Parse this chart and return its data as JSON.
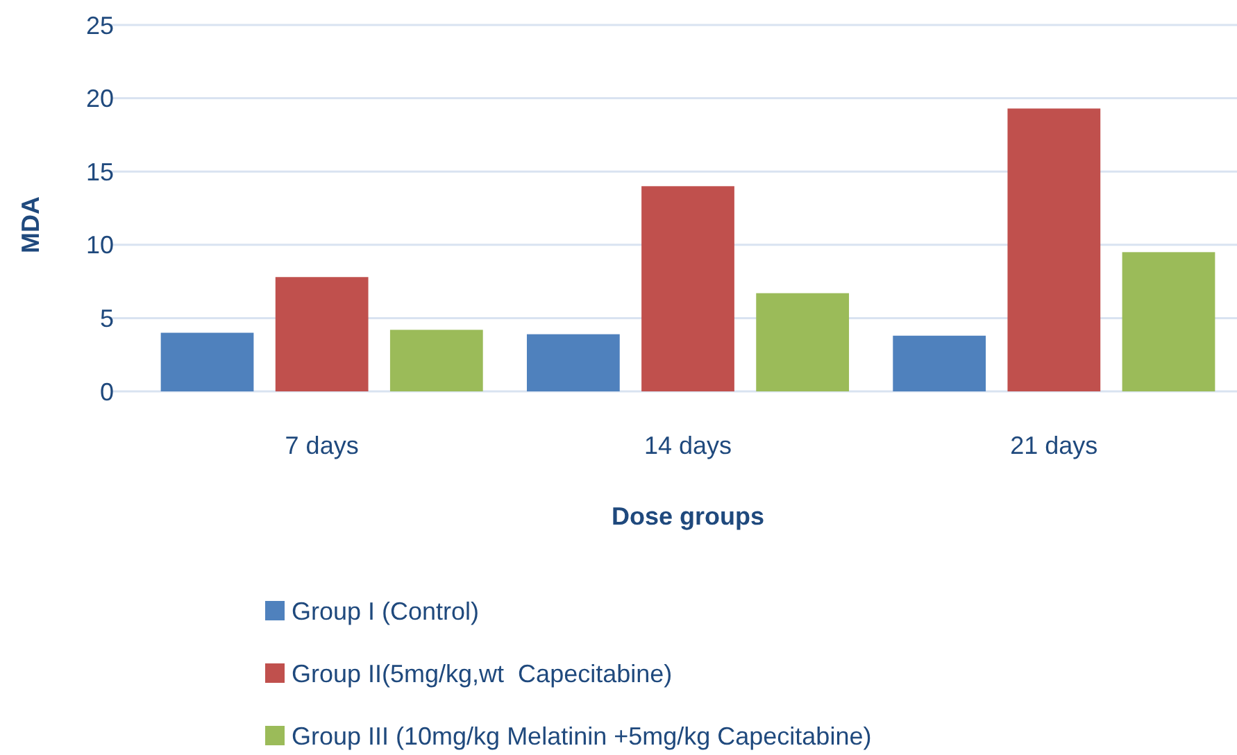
{
  "chart_data": {
    "type": "bar",
    "xlabel": "Dose groups",
    "ylabel": "MDA",
    "categories": [
      "7 days",
      "14 days",
      "21 days"
    ],
    "series": [
      {
        "name": "Group I (Control)",
        "color": "#4f81bd",
        "values": [
          4.0,
          3.9,
          3.8
        ]
      },
      {
        "name": "Group II(5mg/kg,wt  Capecitabine)",
        "color": "#c0504d",
        "values": [
          7.8,
          14.0,
          19.3
        ]
      },
      {
        "name": "Group III (10mg/kg Melatinin +5mg/kg Capecitabine)",
        "color": "#9bbb59",
        "values": [
          4.2,
          6.7,
          9.5
        ]
      }
    ],
    "ylim": [
      0,
      25
    ],
    "yticks": [
      0,
      5,
      10,
      15,
      20,
      25
    ],
    "grid": "y",
    "legend": "bottom"
  }
}
